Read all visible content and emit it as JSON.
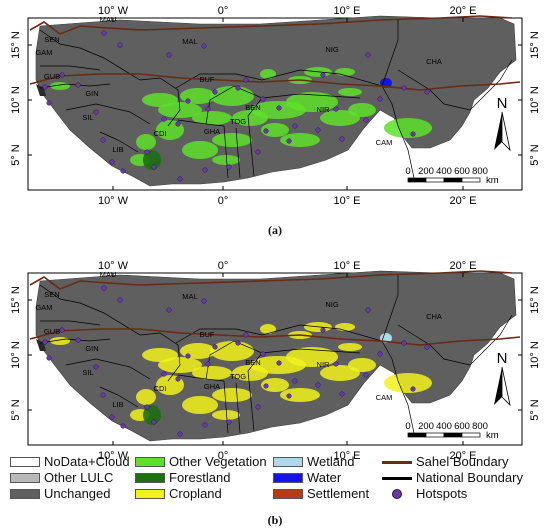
{
  "panels": [
    {
      "caption": "(a)",
      "lat_labels": [
        "15° N",
        "10° N",
        "5° N"
      ],
      "lon_labels": [
        "10° W",
        "0°",
        "10° E",
        "20° E"
      ],
      "countries": [
        "MAU",
        "SEN",
        "GAM",
        "GUB",
        "GIN",
        "SIL",
        "LIB",
        "CDI",
        "GHA",
        "TOG",
        "BEN",
        "BUF",
        "MAL",
        "NIG",
        "NIR",
        "CHA",
        "CAM"
      ],
      "scale_ticks": [
        "0",
        "200",
        "400",
        "600",
        "800"
      ],
      "scale_unit": "km",
      "north_label": "N",
      "change_color": "#5ee02a"
    },
    {
      "caption": "(b)",
      "lat_labels": [
        "15° N",
        "10° N",
        "5° N"
      ],
      "lon_labels": [
        "10° W",
        "0°",
        "10° E",
        "20° E"
      ],
      "countries": [
        "MAU",
        "SEN",
        "GAM",
        "GUB",
        "GIN",
        "SIL",
        "LIB",
        "CDI",
        "GHA",
        "TOG",
        "BEN",
        "BUF",
        "MAL",
        "NIG",
        "NIR",
        "CHA",
        "CAM"
      ],
      "scale_ticks": [
        "0",
        "200",
        "400",
        "600",
        "800"
      ],
      "scale_unit": "km",
      "north_label": "N",
      "change_color": "#f2f21a"
    }
  ],
  "legend": [
    {
      "label": "NoData+Cloud",
      "color": "#ffffff",
      "type": "box"
    },
    {
      "label": "Other LULC",
      "color": "#b9b9b9",
      "type": "box"
    },
    {
      "label": "Unchanged",
      "color": "#5f5f5f",
      "type": "box"
    },
    {
      "label": "Other Vegetation",
      "color": "#5ee02a",
      "type": "box"
    },
    {
      "label": "Forestland",
      "color": "#1e6e12",
      "type": "box"
    },
    {
      "label": "Cropland",
      "color": "#f2f21a",
      "type": "box"
    },
    {
      "label": "Wetland",
      "color": "#a9dbe8",
      "type": "box"
    },
    {
      "label": "Water",
      "color": "#1414e6",
      "type": "box"
    },
    {
      "label": "Settlement",
      "color": "#b53b1a",
      "type": "box"
    },
    {
      "label": "Sahel Boundary",
      "color": "#6b2a14",
      "type": "line"
    },
    {
      "label": "National  Boundary",
      "color": "#000000",
      "type": "line"
    },
    {
      "label": "Hotspots",
      "color": "#6a3aa0",
      "type": "dot"
    }
  ]
}
